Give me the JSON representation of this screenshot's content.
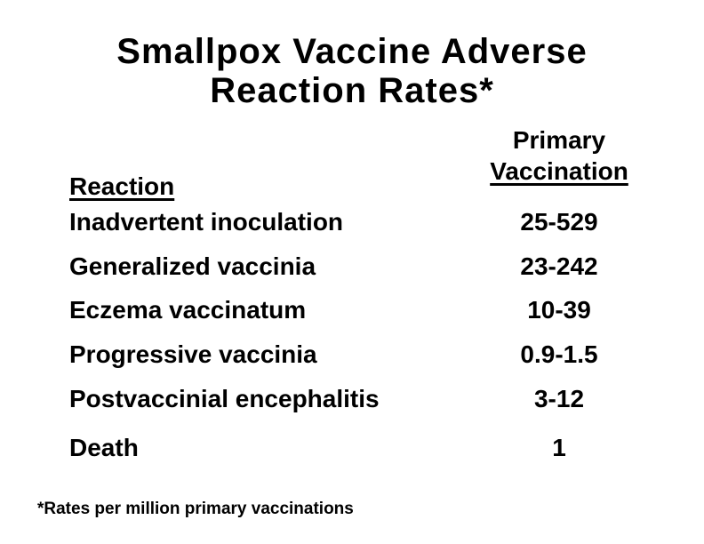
{
  "slide": {
    "title_line1": "Smallpox Vaccine Adverse",
    "title_line2": "Reaction Rates*",
    "footnote": "*Rates per million primary vaccinations"
  },
  "table": {
    "col_header_left": "Reaction",
    "col_header_right_line1": "Primary",
    "col_header_right_line2": "Vaccination",
    "rows": [
      {
        "reaction": "Inadvertent inoculation",
        "rate": "25-529"
      },
      {
        "reaction": "Generalized vaccinia",
        "rate": "23-242"
      },
      {
        "reaction": "Eczema vaccinatum",
        "rate": "10-39"
      },
      {
        "reaction": "Progressive vaccinia",
        "rate": "0.9-1.5"
      },
      {
        "reaction": "Postvaccinial encephalitis",
        "rate": "3-12"
      },
      {
        "reaction": "Death",
        "rate": "1"
      }
    ]
  },
  "colors": {
    "background": "#ffffff",
    "text": "#000000"
  }
}
